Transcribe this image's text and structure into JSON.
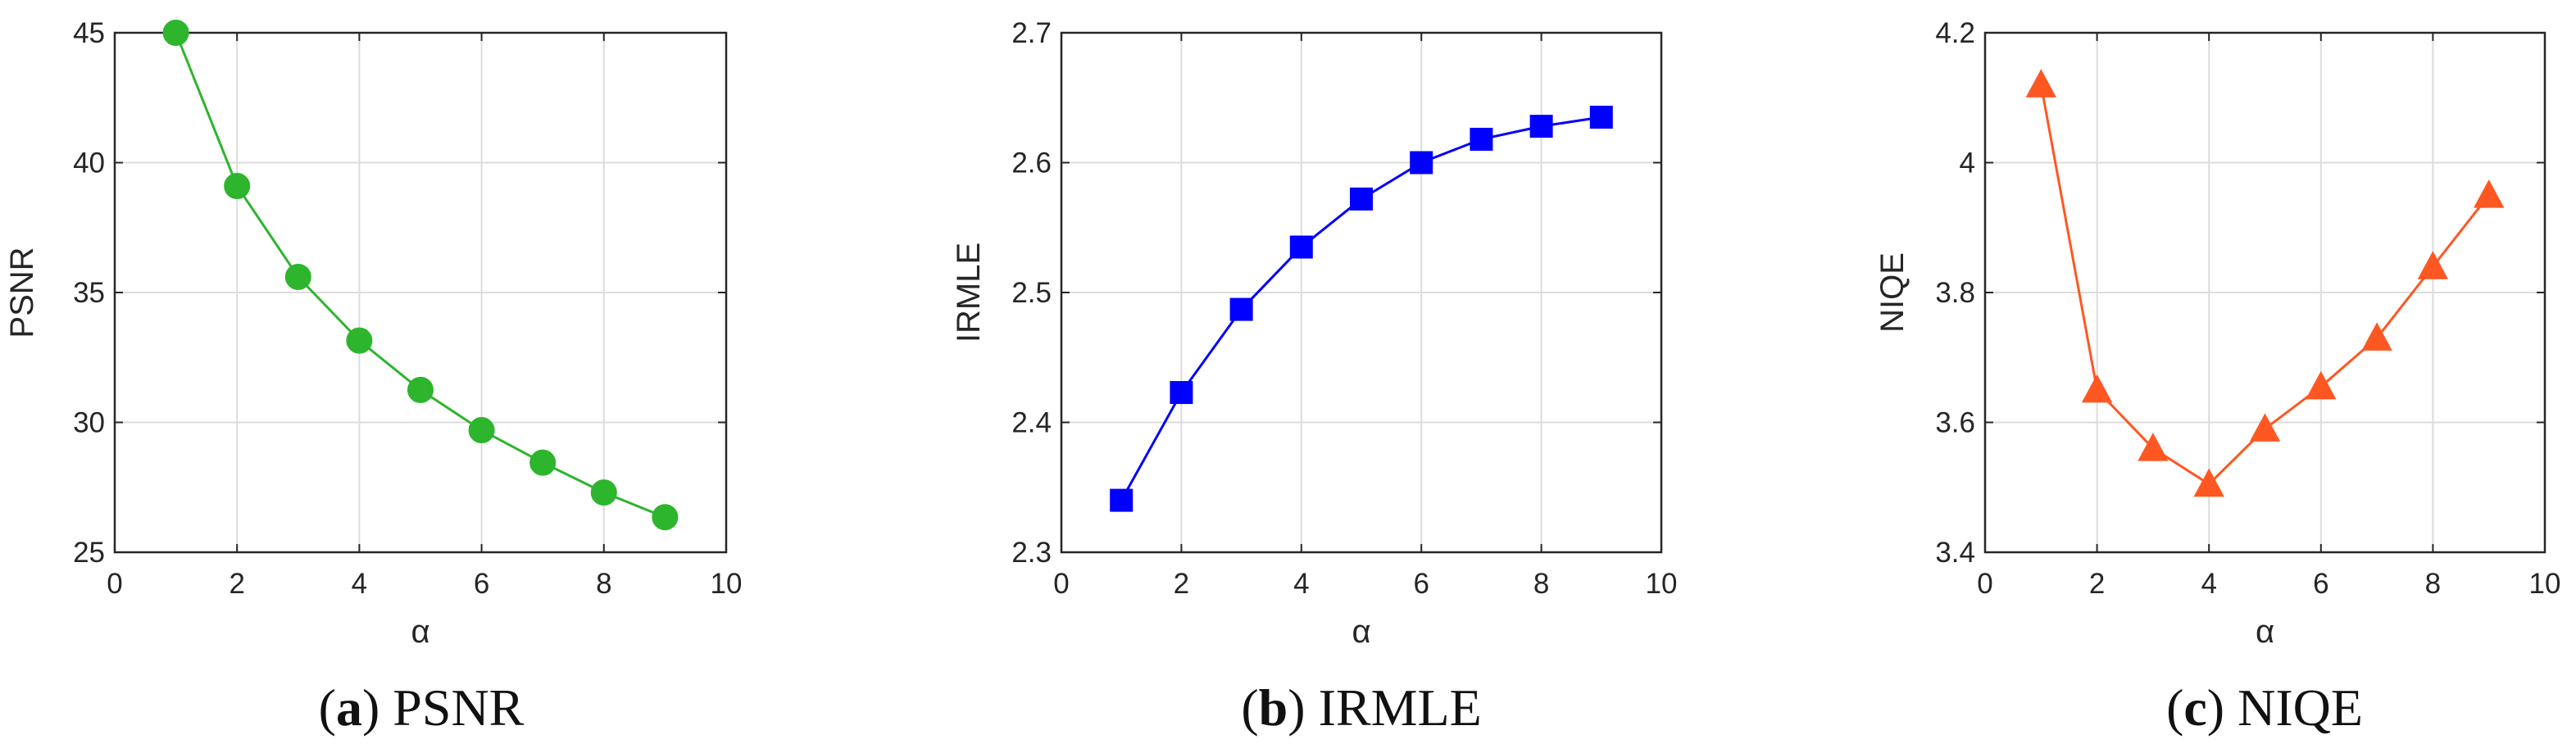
{
  "chart_data": [
    {
      "type": "line",
      "xlabel": "α",
      "ylabel": "PSNR",
      "xlim": [
        0,
        10
      ],
      "ylim": [
        25,
        45
      ],
      "xticks": [
        "0",
        "2",
        "4",
        "6",
        "8",
        "10"
      ],
      "yticks": [
        "25",
        "30",
        "35",
        "40",
        "45"
      ],
      "grid": true,
      "marker": "circle",
      "color": "#2db52d",
      "caption": {
        "label": "a",
        "text": " PSNR"
      },
      "x": [
        1,
        2,
        3,
        4,
        5,
        6,
        7,
        8,
        9
      ],
      "y": [
        45.0,
        39.1,
        35.6,
        33.15,
        31.25,
        29.7,
        28.45,
        27.3,
        26.35
      ]
    },
    {
      "type": "line",
      "xlabel": "α",
      "ylabel": "IRMLE",
      "xlim": [
        0,
        10
      ],
      "ylim": [
        2.3,
        2.7
      ],
      "xticks": [
        "0",
        "2",
        "4",
        "6",
        "8",
        "10"
      ],
      "yticks": [
        "2.3",
        "2.4",
        "2.5",
        "2.6",
        "2.7"
      ],
      "grid": true,
      "marker": "square",
      "color": "#0000ff",
      "caption": {
        "label": "b",
        "text": " IRMLE"
      },
      "x": [
        1,
        2,
        3,
        4,
        5,
        6,
        7,
        8,
        9
      ],
      "y": [
        2.34,
        2.423,
        2.487,
        2.535,
        2.572,
        2.6,
        2.618,
        2.628,
        2.635
      ]
    },
    {
      "type": "line",
      "xlabel": "α",
      "ylabel": "NIQE",
      "xlim": [
        0,
        10
      ],
      "ylim": [
        3.4,
        4.2
      ],
      "xticks": [
        "0",
        "2",
        "4",
        "6",
        "8",
        "10"
      ],
      "yticks": [
        "3.4",
        "3.6",
        "3.8",
        "4",
        "4.2"
      ],
      "grid": true,
      "marker": "triangle",
      "color": "#ff5722",
      "caption": {
        "label": "c",
        "text": " NIQE"
      },
      "x": [
        1,
        2,
        3,
        4,
        5,
        6,
        7,
        8,
        9
      ],
      "y": [
        4.12,
        3.65,
        3.56,
        3.505,
        3.59,
        3.655,
        3.73,
        3.84,
        3.95
      ]
    }
  ]
}
